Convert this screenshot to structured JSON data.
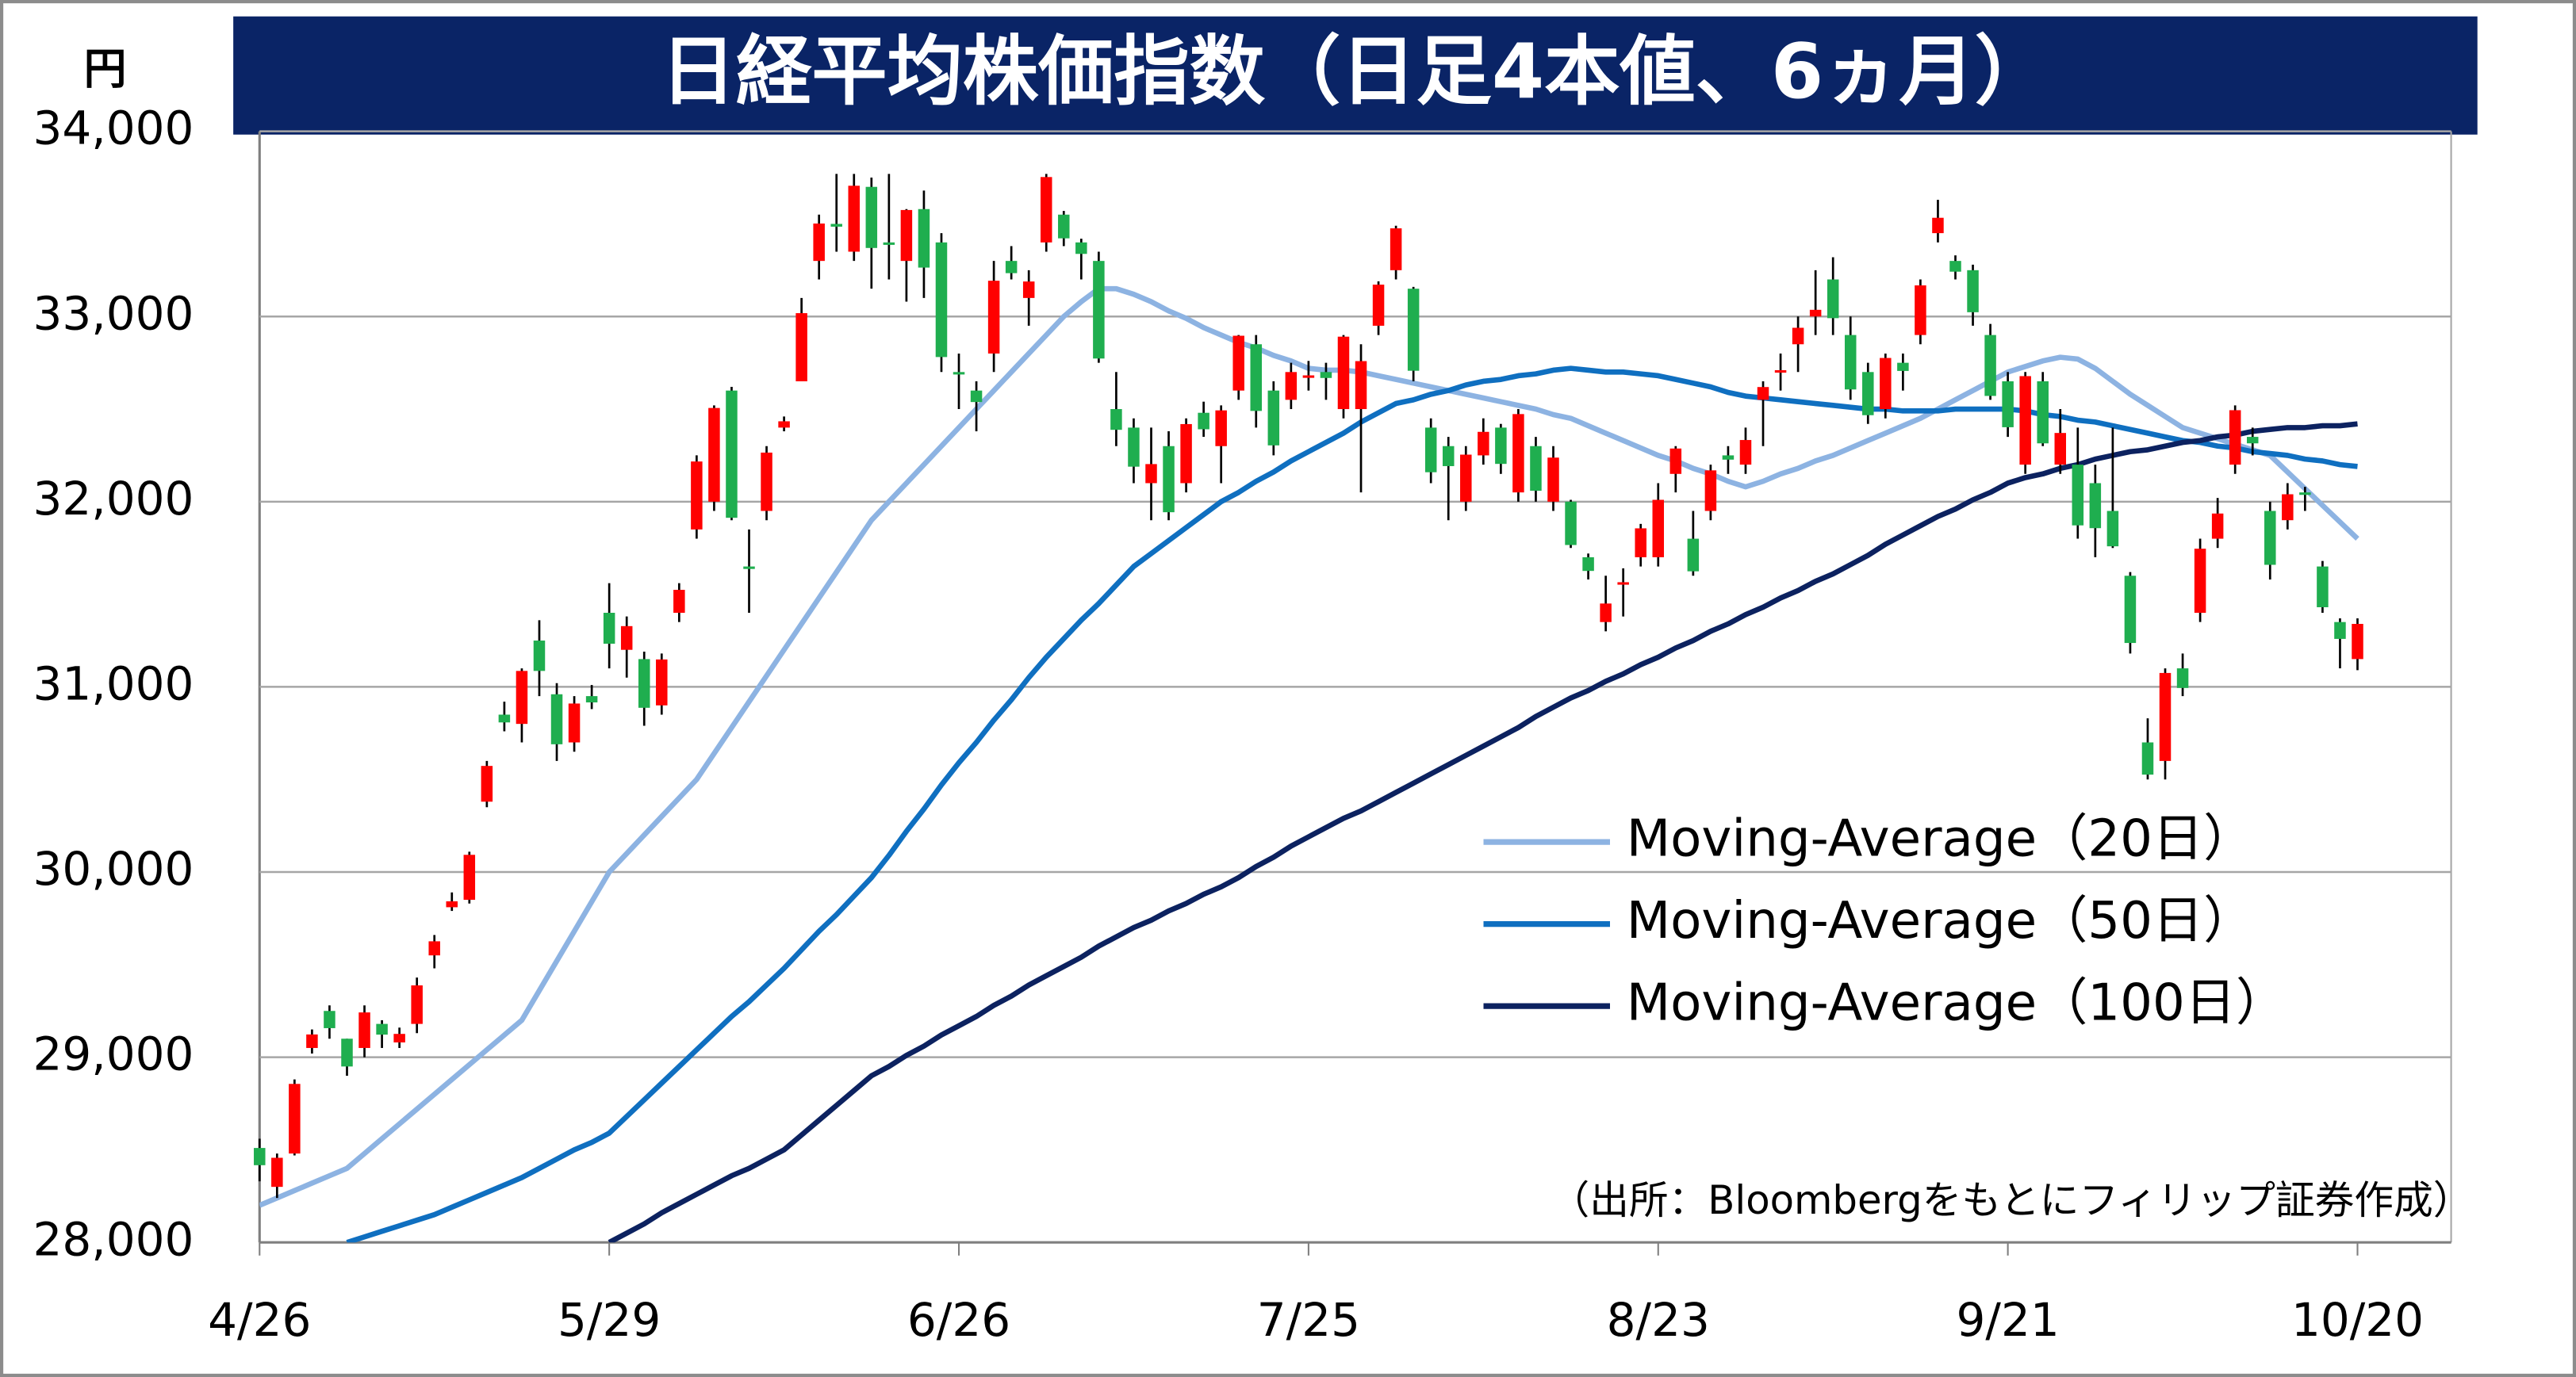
{
  "chart_data": {
    "type": "candlestick",
    "title": "日経平均株価指数（日足4本値、6ヵ月）",
    "y_unit": "円",
    "source": "（出所：Bloombergをもとにフィリップ証券作成）",
    "up_color": "#ff0000",
    "down_color": "#1fae4f",
    "title_background": "#0a2466",
    "grid": true,
    "ylim": [
      28000,
      34000
    ],
    "yticks": [
      {
        "value": 28000,
        "label": "28,000"
      },
      {
        "value": 29000,
        "label": "29,000"
      },
      {
        "value": 30000,
        "label": "30,000"
      },
      {
        "value": 31000,
        "label": "31,000"
      },
      {
        "value": 32000,
        "label": "32,000"
      },
      {
        "value": 33000,
        "label": "33,000"
      },
      {
        "value": 34000,
        "label": "34,000"
      }
    ],
    "categories": [
      "4/26",
      null,
      null,
      null,
      null,
      null,
      null,
      null,
      null,
      null,
      null,
      null,
      null,
      null,
      null,
      null,
      null,
      null,
      null,
      null,
      "5/29",
      null,
      null,
      null,
      null,
      null,
      null,
      null,
      null,
      null,
      null,
      null,
      null,
      null,
      null,
      null,
      null,
      null,
      null,
      null,
      "6/26",
      null,
      null,
      null,
      null,
      null,
      null,
      null,
      null,
      null,
      null,
      null,
      null,
      null,
      null,
      null,
      null,
      null,
      null,
      null,
      "7/25",
      null,
      null,
      null,
      null,
      null,
      null,
      null,
      null,
      null,
      null,
      null,
      null,
      null,
      null,
      null,
      null,
      null,
      null,
      null,
      "8/23",
      null,
      null,
      null,
      null,
      null,
      null,
      null,
      null,
      null,
      null,
      null,
      null,
      null,
      null,
      null,
      null,
      null,
      null,
      null,
      "9/21",
      null,
      null,
      null,
      null,
      null,
      null,
      null,
      null,
      null,
      null,
      null,
      null,
      null,
      null,
      null,
      null,
      null,
      null,
      null,
      "10/20"
    ],
    "ohlc": [
      [
        28510,
        28560,
        28330,
        28417
      ],
      [
        28300,
        28480,
        28240,
        28457
      ],
      [
        28480,
        28880,
        28470,
        28856
      ],
      [
        29050,
        29150,
        29020,
        29123
      ],
      [
        29250,
        29280,
        29100,
        29157
      ],
      [
        29100,
        29100,
        28900,
        28950
      ],
      [
        29050,
        29280,
        29000,
        29242
      ],
      [
        29180,
        29200,
        29050,
        29122
      ],
      [
        29080,
        29160,
        29050,
        29126
      ],
      [
        29180,
        29430,
        29130,
        29388
      ],
      [
        29550,
        29660,
        29480,
        29626
      ],
      [
        29810,
        29890,
        29790,
        29842
      ],
      [
        29850,
        30110,
        29830,
        30093
      ],
      [
        30380,
        30600,
        30350,
        30573
      ],
      [
        30850,
        30920,
        30760,
        30808
      ],
      [
        30800,
        31100,
        30700,
        31086
      ],
      [
        31250,
        31360,
        30950,
        31086
      ],
      [
        30960,
        31020,
        30600,
        30690
      ],
      [
        30700,
        30950,
        30650,
        30910
      ],
      [
        30950,
        31010,
        30880,
        30916
      ],
      [
        31400,
        31560,
        31100,
        31233
      ],
      [
        31200,
        31380,
        31050,
        31328
      ],
      [
        31150,
        31190,
        30790,
        30887
      ],
      [
        30900,
        31180,
        30850,
        31148
      ],
      [
        31400,
        31560,
        31350,
        31524
      ],
      [
        31850,
        32250,
        31800,
        32217
      ],
      [
        32000,
        32520,
        31950,
        32506
      ],
      [
        32600,
        32620,
        31900,
        31913
      ],
      [
        31650,
        31850,
        31400,
        31641
      ],
      [
        31950,
        32300,
        31900,
        32265
      ],
      [
        32400,
        32460,
        32380,
        32434
      ],
      [
        32650,
        33100,
        32650,
        33018
      ],
      [
        33300,
        33550,
        33200,
        33502
      ],
      [
        33500,
        33770,
        33350,
        33485
      ],
      [
        33350,
        33770,
        33300,
        33706
      ],
      [
        33700,
        33750,
        33150,
        33370
      ],
      [
        33400,
        33770,
        33200,
        33388
      ],
      [
        33300,
        33580,
        33080,
        33575
      ],
      [
        33580,
        33680,
        33100,
        33264
      ],
      [
        33400,
        33450,
        32700,
        32781
      ],
      [
        32700,
        32800,
        32500,
        32698
      ],
      [
        32600,
        32650,
        32380,
        32538
      ],
      [
        32800,
        33300,
        32700,
        33193
      ],
      [
        33300,
        33380,
        33200,
        33234
      ],
      [
        33100,
        33250,
        32950,
        33189
      ],
      [
        33400,
        33770,
        33350,
        33753
      ],
      [
        33550,
        33570,
        33380,
        33422
      ],
      [
        33400,
        33420,
        33200,
        33338
      ],
      [
        33300,
        33350,
        32750,
        32773
      ],
      [
        32500,
        32700,
        32300,
        32388
      ],
      [
        32400,
        32450,
        32100,
        32189
      ],
      [
        32100,
        32400,
        31900,
        32203
      ],
      [
        32300,
        32380,
        31900,
        31943
      ],
      [
        32100,
        32450,
        32050,
        32419
      ],
      [
        32480,
        32540,
        32350,
        32391
      ],
      [
        32300,
        32520,
        32100,
        32493
      ],
      [
        32600,
        32900,
        32550,
        32896
      ],
      [
        32850,
        32900,
        32400,
        32490
      ],
      [
        32600,
        32650,
        32250,
        32304
      ],
      [
        32550,
        32750,
        32500,
        32700
      ],
      [
        32680,
        32760,
        32600,
        32682
      ],
      [
        32700,
        32750,
        32550,
        32668
      ],
      [
        32500,
        32900,
        32450,
        32891
      ],
      [
        32500,
        32850,
        32050,
        32759
      ],
      [
        32950,
        33190,
        32900,
        33172
      ],
      [
        33250,
        33490,
        33200,
        33476
      ],
      [
        33150,
        33160,
        32650,
        32707
      ],
      [
        32400,
        32450,
        32100,
        32159
      ],
      [
        32300,
        32350,
        31900,
        32192
      ],
      [
        32000,
        32300,
        31950,
        32254
      ],
      [
        32250,
        32450,
        32200,
        32377
      ],
      [
        32400,
        32420,
        32150,
        32204
      ],
      [
        32050,
        32500,
        32000,
        32473
      ],
      [
        32300,
        32350,
        32000,
        32059
      ],
      [
        32000,
        32300,
        31950,
        32238
      ],
      [
        32000,
        32010,
        31750,
        31766
      ],
      [
        31700,
        31720,
        31580,
        31626
      ],
      [
        31350,
        31600,
        31300,
        31450
      ],
      [
        31560,
        31640,
        31380,
        31565
      ],
      [
        31700,
        31880,
        31650,
        31856
      ],
      [
        31700,
        32100,
        31650,
        32010
      ],
      [
        32150,
        32300,
        32050,
        32287
      ],
      [
        31800,
        31950,
        31600,
        31624
      ],
      [
        31950,
        32200,
        31900,
        32169
      ],
      [
        32250,
        32300,
        32150,
        32227
      ],
      [
        32200,
        32400,
        32150,
        32333
      ],
      [
        32550,
        32650,
        32300,
        32619
      ],
      [
        32700,
        32800,
        32600,
        32710
      ],
      [
        32850,
        33000,
        32700,
        32939
      ],
      [
        33000,
        33250,
        32900,
        33036
      ],
      [
        33200,
        33320,
        32900,
        32991
      ],
      [
        32900,
        33000,
        32550,
        32606
      ],
      [
        32700,
        32750,
        32420,
        32467
      ],
      [
        32500,
        32800,
        32450,
        32776
      ],
      [
        32750,
        32800,
        32600,
        32706
      ],
      [
        32900,
        33200,
        32850,
        33168
      ],
      [
        33450,
        33630,
        33400,
        33533
      ],
      [
        33300,
        33330,
        33200,
        33242
      ],
      [
        33250,
        33280,
        32950,
        33023
      ],
      [
        32900,
        32960,
        32550,
        32571
      ],
      [
        32650,
        32700,
        32350,
        32402
      ],
      [
        32200,
        32700,
        32150,
        32678
      ],
      [
        32650,
        32700,
        32300,
        32315
      ],
      [
        32200,
        32500,
        32150,
        32371
      ],
      [
        32200,
        32400,
        31800,
        31872
      ],
      [
        32100,
        32200,
        31700,
        31857
      ],
      [
        31950,
        32400,
        31750,
        31759
      ],
      [
        31600,
        31620,
        31180,
        31237
      ],
      [
        30700,
        30830,
        30500,
        30526
      ],
      [
        30600,
        31100,
        30500,
        31075
      ],
      [
        31100,
        31180,
        30950,
        30994
      ],
      [
        31400,
        31800,
        31350,
        31746
      ],
      [
        31800,
        32020,
        31750,
        31936
      ],
      [
        32200,
        32520,
        32150,
        32494
      ],
      [
        32350,
        32400,
        32250,
        32315
      ],
      [
        31950,
        32000,
        31580,
        31659
      ],
      [
        31900,
        32100,
        31850,
        32040
      ],
      [
        32050,
        32080,
        31950,
        32042
      ],
      [
        31650,
        31680,
        31400,
        31430
      ],
      [
        31350,
        31370,
        31100,
        31259
      ],
      [
        31150,
        31370,
        31090,
        31340
      ]
    ],
    "series": [
      {
        "name": "Moving-Average（20日）",
        "color": "#8db3e2",
        "values": [
          28200,
          28240,
          28280,
          28320,
          28360,
          28400,
          28480,
          28560,
          28640,
          28720,
          28800,
          28880,
          28960,
          29040,
          29120,
          29200,
          29360,
          29520,
          29680,
          29840,
          30000,
          30100,
          30200,
          30300,
          30400,
          30500,
          30640,
          30780,
          30920,
          31060,
          31200,
          31340,
          31480,
          31620,
          31760,
          31900,
          32000,
          32100,
          32200,
          32300,
          32400,
          32500,
          32600,
          32700,
          32800,
          32900,
          33000,
          33080,
          33150,
          33150,
          33120,
          33080,
          33030,
          32990,
          32940,
          32900,
          32860,
          32830,
          32790,
          32760,
          32720,
          32710,
          32710,
          32700,
          32680,
          32660,
          32640,
          32620,
          32600,
          32580,
          32560,
          32540,
          32520,
          32500,
          32470,
          32450,
          32410,
          32370,
          32330,
          32290,
          32250,
          32220,
          32180,
          32150,
          32110,
          32080,
          32110,
          32150,
          32180,
          32220,
          32250,
          32290,
          32330,
          32370,
          32410,
          32450,
          32500,
          32550,
          32600,
          32650,
          32700,
          32730,
          32760,
          32780,
          32770,
          32720,
          32650,
          32580,
          32520,
          32460,
          32400,
          32370,
          32340,
          32310,
          32280,
          32250,
          32160,
          32070,
          31980,
          31890,
          31800
        ]
      },
      {
        "name": "Moving-Average（50日）",
        "color": "#0f6fc0",
        "values": [
          null,
          null,
          null,
          null,
          null,
          28000,
          28030,
          28060,
          28090,
          28120,
          28150,
          28190,
          28230,
          28270,
          28310,
          28350,
          28400,
          28450,
          28500,
          28540,
          28590,
          28680,
          28770,
          28860,
          28950,
          29040,
          29130,
          29220,
          29300,
          29390,
          29480,
          29580,
          29680,
          29770,
          29870,
          29970,
          30090,
          30220,
          30340,
          30470,
          30590,
          30700,
          30820,
          30930,
          31050,
          31160,
          31260,
          31360,
          31450,
          31550,
          31650,
          31720,
          31790,
          31860,
          31930,
          32000,
          32050,
          32110,
          32160,
          32220,
          32270,
          32320,
          32370,
          32430,
          32480,
          32530,
          32550,
          32580,
          32600,
          32630,
          32650,
          32660,
          32680,
          32690,
          32710,
          32720,
          32710,
          32700,
          32700,
          32690,
          32680,
          32660,
          32640,
          32620,
          32590,
          32570,
          32560,
          32550,
          32540,
          32530,
          32520,
          32510,
          32500,
          32500,
          32490,
          32490,
          32490,
          32500,
          32500,
          32500,
          32500,
          32490,
          32470,
          32460,
          32440,
          32430,
          32410,
          32390,
          32370,
          32350,
          32330,
          32320,
          32300,
          32290,
          32270,
          32260,
          32250,
          32230,
          32220,
          32200,
          32190
        ]
      },
      {
        "name": "Moving-Average（100日）",
        "color": "#0c2260",
        "values": [
          null,
          null,
          null,
          null,
          null,
          null,
          null,
          null,
          null,
          null,
          null,
          null,
          null,
          null,
          null,
          null,
          null,
          null,
          null,
          null,
          28000,
          28050,
          28100,
          28160,
          28210,
          28260,
          28310,
          28360,
          28400,
          28450,
          28500,
          28580,
          28660,
          28740,
          28820,
          28900,
          28950,
          29010,
          29060,
          29120,
          29170,
          29220,
          29280,
          29330,
          29390,
          29440,
          29490,
          29540,
          29600,
          29650,
          29700,
          29740,
          29790,
          29830,
          29880,
          29920,
          29970,
          30030,
          30080,
          30140,
          30190,
          30240,
          30290,
          30330,
          30380,
          30430,
          30480,
          30530,
          30580,
          30630,
          30680,
          30730,
          30780,
          30840,
          30890,
          30940,
          30980,
          31030,
          31070,
          31120,
          31160,
          31210,
          31250,
          31300,
          31340,
          31390,
          31430,
          31480,
          31520,
          31570,
          31610,
          31660,
          31710,
          31770,
          31820,
          31870,
          31920,
          31960,
          32010,
          32050,
          32100,
          32130,
          32150,
          32180,
          32200,
          32230,
          32250,
          32270,
          32280,
          32300,
          32320,
          32330,
          32350,
          32360,
          32380,
          32390,
          32400,
          32400,
          32410,
          32410,
          32420
        ]
      }
    ]
  }
}
